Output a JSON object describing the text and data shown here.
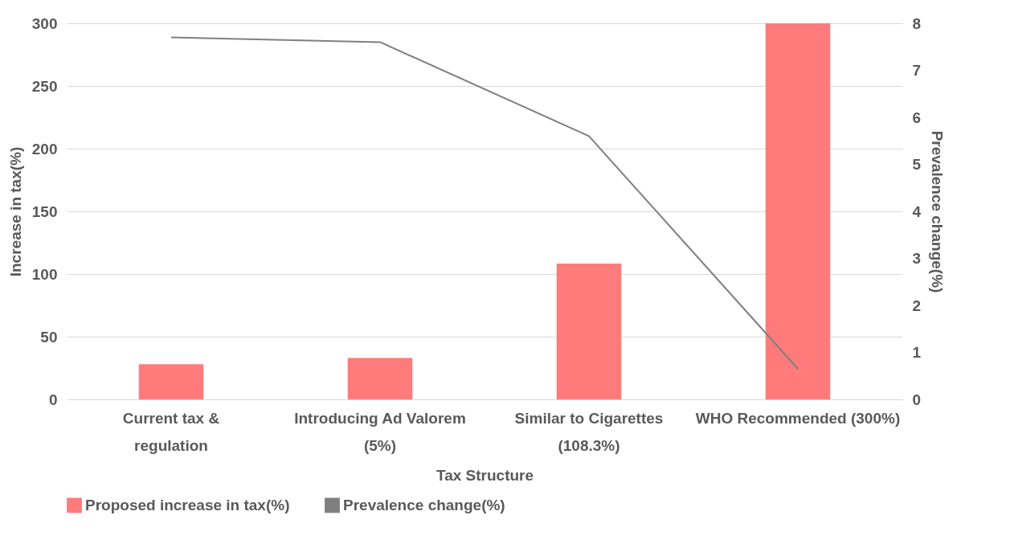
{
  "chart_data": {
    "type": "bar",
    "xlabel": "Tax Structure",
    "ylabel": "Increase in tax(%)",
    "y2label": "Prevalence change(%)",
    "categories": [
      "Current tax & regulation",
      "Introducing Ad Valorem (5%)",
      "Similar to Cigarettes (108.3%)",
      "WHO Recommended (300%)"
    ],
    "series": [
      {
        "name": "Proposed increase in tax(%)",
        "color": "#ff7b7b",
        "values": [
          28,
          33,
          108.3,
          300
        ]
      },
      {
        "name": "Prevalence change(%)",
        "type": "line",
        "axis": "y2",
        "color": "#7f7f7f",
        "values": [
          7.7,
          7.6,
          5.6,
          0.65
        ]
      }
    ],
    "ylim": [
      0,
      300
    ],
    "yticks": [
      0,
      50,
      100,
      150,
      200,
      250,
      300
    ],
    "y2lim": [
      0,
      8
    ],
    "y2ticks": [
      0,
      1,
      2,
      3,
      4,
      5,
      6,
      7,
      8
    ],
    "grid": "y",
    "legend": "bottom"
  }
}
